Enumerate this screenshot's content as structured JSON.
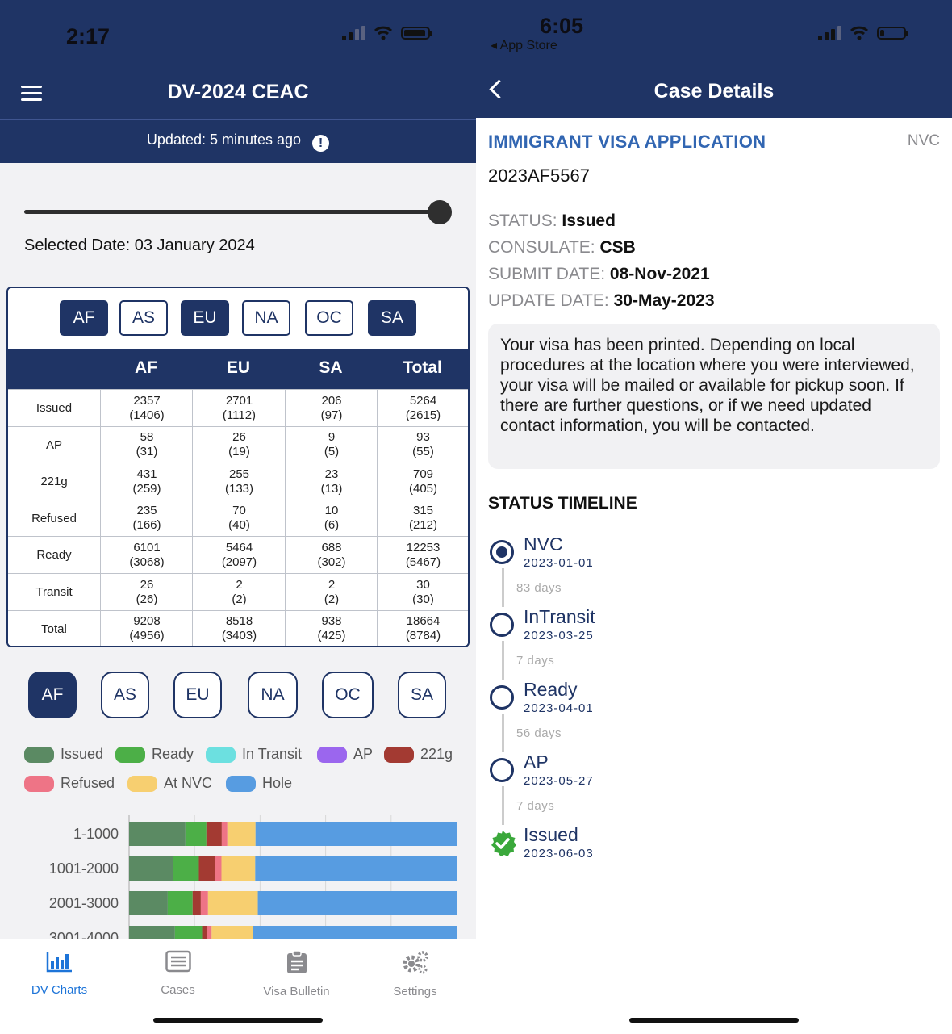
{
  "left": {
    "status_time": "2:17",
    "title": "DV-2024 CEAC",
    "updated": "Updated: 5 minutes ago",
    "selected_date": "Selected Date: 03 January 2024",
    "region_filters": [
      {
        "label": "AF",
        "on": true
      },
      {
        "label": "AS",
        "on": false
      },
      {
        "label": "EU",
        "on": true
      },
      {
        "label": "NA",
        "on": false
      },
      {
        "label": "OC",
        "on": false
      },
      {
        "label": "SA",
        "on": true
      }
    ],
    "table": {
      "headers": [
        "AF",
        "EU",
        "SA",
        "Total"
      ],
      "rows": [
        {
          "label": "Issued",
          "cells": [
            [
              "2357",
              "(1406)"
            ],
            [
              "2701",
              "(1112)"
            ],
            [
              "206",
              "(97)"
            ],
            [
              "5264",
              "(2615)"
            ]
          ]
        },
        {
          "label": "AP",
          "cells": [
            [
              "58",
              "(31)"
            ],
            [
              "26",
              "(19)"
            ],
            [
              "9",
              "(5)"
            ],
            [
              "93",
              "(55)"
            ]
          ]
        },
        {
          "label": "221g",
          "cells": [
            [
              "431",
              "(259)"
            ],
            [
              "255",
              "(133)"
            ],
            [
              "23",
              "(13)"
            ],
            [
              "709",
              "(405)"
            ]
          ]
        },
        {
          "label": "Refused",
          "cells": [
            [
              "235",
              "(166)"
            ],
            [
              "70",
              "(40)"
            ],
            [
              "10",
              "(6)"
            ],
            [
              "315",
              "(212)"
            ]
          ]
        },
        {
          "label": "Ready",
          "cells": [
            [
              "6101",
              "(3068)"
            ],
            [
              "5464",
              "(2097)"
            ],
            [
              "688",
              "(302)"
            ],
            [
              "12253",
              "(5467)"
            ]
          ]
        },
        {
          "label": "Transit",
          "cells": [
            [
              "26",
              "(26)"
            ],
            [
              "2",
              "(2)"
            ],
            [
              "2",
              "(2)"
            ],
            [
              "30",
              "(30)"
            ]
          ]
        },
        {
          "label": "Total",
          "cells": [
            [
              "9208",
              "(4956)"
            ],
            [
              "8518",
              "(3403)"
            ],
            [
              "938",
              "(425)"
            ],
            [
              "18664",
              "(8784)"
            ]
          ]
        }
      ]
    },
    "chart_regions": [
      {
        "label": "AF",
        "on": true
      },
      {
        "label": "AS",
        "on": false
      },
      {
        "label": "EU",
        "on": false
      },
      {
        "label": "NA",
        "on": false
      },
      {
        "label": "OC",
        "on": false
      },
      {
        "label": "SA",
        "on": false
      }
    ],
    "legend": [
      {
        "name": "Issued",
        "color": "#5b8a63"
      },
      {
        "name": "Ready",
        "color": "#4caf47"
      },
      {
        "name": "In Transit",
        "color": "#6ce0e0"
      },
      {
        "name": "AP",
        "color": "#9b66ee"
      },
      {
        "name": "221g",
        "color": "#a33a32"
      },
      {
        "name": "Refused",
        "color": "#ee7486"
      },
      {
        "name": "At NVC",
        "color": "#f7cf70"
      },
      {
        "name": "Hole",
        "color": "#579ce1"
      }
    ],
    "tabs": [
      {
        "label": "DV Charts",
        "icon": "bar-chart-icon",
        "active": true
      },
      {
        "label": "Cases",
        "icon": "list-icon",
        "active": false
      },
      {
        "label": "Visa Bulletin",
        "icon": "clipboard-icon",
        "active": false
      },
      {
        "label": "Settings",
        "icon": "gears-icon",
        "active": false
      }
    ]
  },
  "chart_data": {
    "type": "bar",
    "orientation": "horizontal-stacked",
    "categories": [
      "1-1000",
      "1001-2000",
      "2001-3000",
      "3001-4000"
    ],
    "series": [
      {
        "name": "Issued",
        "values": [
          172,
          134,
          118,
          140
        ]
      },
      {
        "name": "Ready",
        "values": [
          64,
          79,
          76,
          83
        ]
      },
      {
        "name": "In Transit",
        "values": [
          0,
          0,
          0,
          0
        ]
      },
      {
        "name": "AP",
        "values": [
          0,
          0,
          0,
          0
        ]
      },
      {
        "name": "221g",
        "values": [
          47,
          49,
          25,
          14
        ]
      },
      {
        "name": "Refused",
        "values": [
          17,
          20,
          22,
          15
        ]
      },
      {
        "name": "At NVC",
        "values": [
          86,
          103,
          152,
          127
        ]
      },
      {
        "name": "Hole",
        "values": [
          614,
          615,
          607,
          621
        ]
      }
    ],
    "xlim": [
      0,
      1000
    ],
    "grid": true
  },
  "right": {
    "status_time": "6:05",
    "back_app": "App Store",
    "title": "Case Details",
    "app_type": "IMMIGRANT VISA APPLICATION",
    "tag": "NVC",
    "case_number": "2023AF5567",
    "fields": [
      {
        "label": "STATUS:",
        "value": "Issued"
      },
      {
        "label": "CONSULATE:",
        "value": "CSB"
      },
      {
        "label": "SUBMIT DATE:",
        "value": "08-Nov-2021"
      },
      {
        "label": "UPDATE DATE:",
        "value": "30-May-2023"
      }
    ],
    "message": "Your visa has been printed. Depending on local procedures at the location where you were interviewed, your visa will be mailed or available for pickup soon. If there are further questions, or if we need updated contact information, you will be contacted.",
    "timeline_title": "STATUS TIMELINE",
    "timeline": [
      {
        "name": "NVC",
        "date": "2023-01-01",
        "days_after": "83 days",
        "state": "current"
      },
      {
        "name": "InTransit",
        "date": "2023-03-25",
        "days_after": "7 days",
        "state": "open"
      },
      {
        "name": "Ready",
        "date": "2023-04-01",
        "days_after": "56 days",
        "state": "open"
      },
      {
        "name": "AP",
        "date": "2023-05-27",
        "days_after": "7 days",
        "state": "open"
      },
      {
        "name": "Issued",
        "date": "2023-06-03",
        "days_after": "",
        "state": "done"
      }
    ]
  }
}
